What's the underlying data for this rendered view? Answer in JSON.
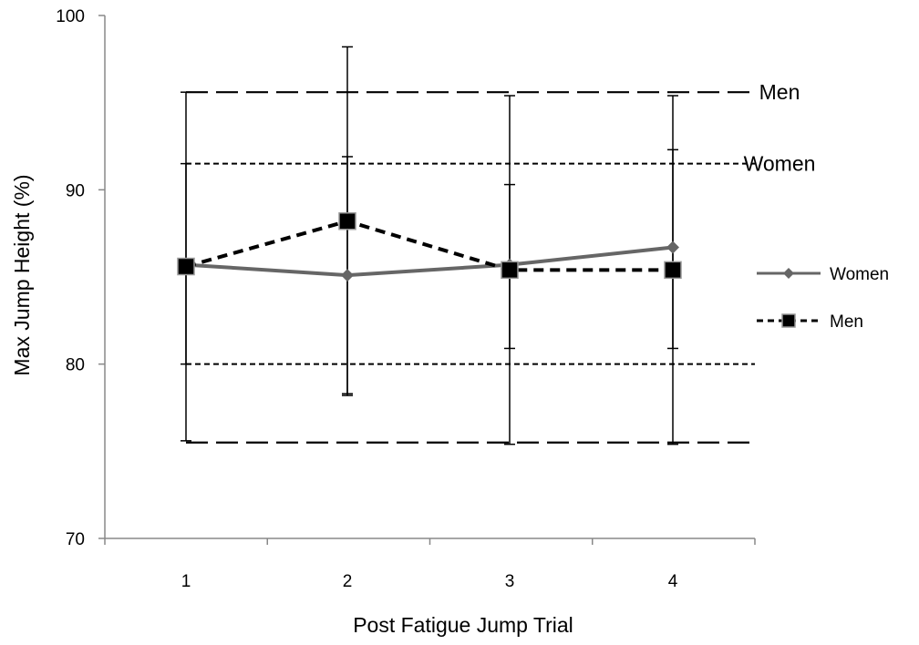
{
  "chart_data": {
    "type": "line",
    "title": "",
    "xlabel": "Post Fatigue Jump Trial",
    "ylabel": "Max Jump Height (%)",
    "categories": [
      "1",
      "2",
      "3",
      "4"
    ],
    "ylim": [
      70,
      100
    ],
    "yticks": [
      70,
      80,
      90,
      100
    ],
    "grid": false,
    "legend_position": "right",
    "series": [
      {
        "name": "Women",
        "marker": "diamond",
        "line_style": "solid",
        "color": "#666666",
        "values": [
          85.7,
          85.1,
          85.7,
          86.7
        ],
        "error_low": [
          80.0,
          78.3,
          80.9,
          80.9
        ],
        "error_high": [
          91.5,
          91.9,
          90.3,
          92.3
        ]
      },
      {
        "name": "Men",
        "marker": "square",
        "line_style": "dashed",
        "color": "#000000",
        "values": [
          85.6,
          88.2,
          85.4,
          85.4
        ],
        "error_low": [
          75.6,
          78.2,
          75.4,
          75.4
        ],
        "error_high": [
          95.6,
          98.2,
          95.4,
          95.4
        ]
      }
    ],
    "reference_bands": [
      {
        "label": "Men",
        "upper": 95.6,
        "lower": 75.5,
        "line_style": "long-dash"
      },
      {
        "label": "Women",
        "upper": 91.5,
        "lower": 80.0,
        "line_style": "short-dash"
      }
    ]
  }
}
